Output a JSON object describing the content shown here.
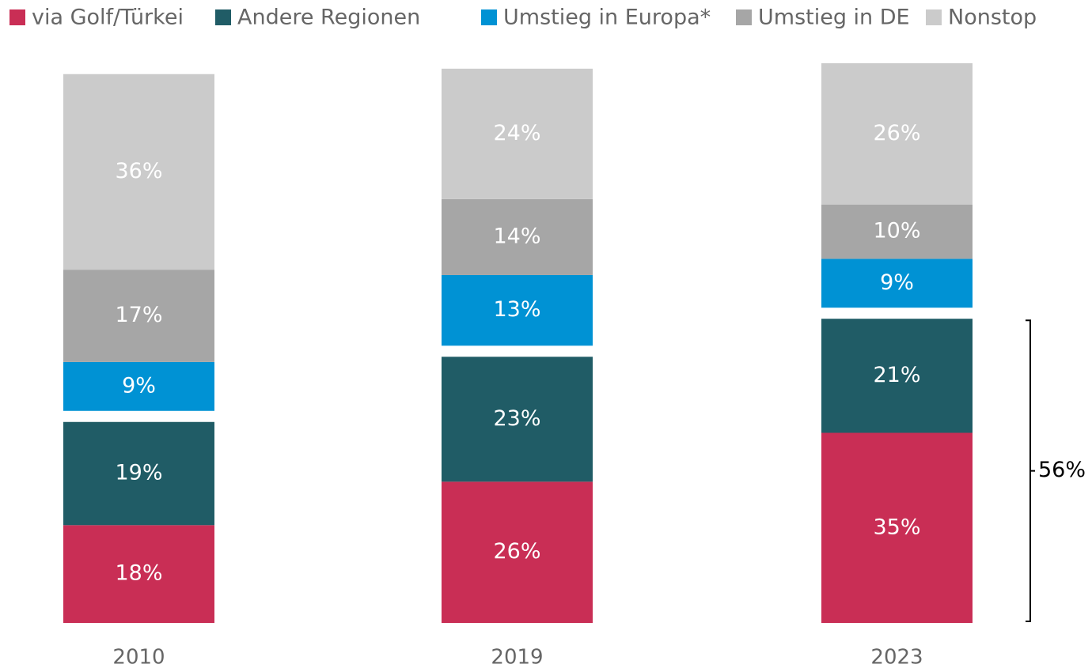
{
  "chart_data": {
    "type": "stacked_bar",
    "categories": [
      "2010",
      "2019",
      "2023"
    ],
    "series": [
      {
        "name": "via Golf/Türkei",
        "color": "#c92e55",
        "values": [
          18,
          26,
          35
        ],
        "value_labels": [
          "18%",
          "26%",
          "35%"
        ]
      },
      {
        "name": "Andere Regionen",
        "color": "#205c66",
        "values": [
          19,
          23,
          21
        ],
        "value_labels": [
          "19%",
          "23%",
          "21%"
        ]
      },
      {
        "name": "Umstieg in Europa*",
        "color": "#0092d4",
        "values": [
          9,
          13,
          9
        ],
        "value_labels": [
          "9%",
          "13%",
          "9%"
        ]
      },
      {
        "name": "Umstieg in DE",
        "color": "#a6a6a6",
        "values": [
          17,
          14,
          10
        ],
        "value_labels": [
          "17%",
          "14%",
          "10%"
        ]
      },
      {
        "name": "Nonstop",
        "color": "#cbcbcb",
        "values": [
          36,
          24,
          26
        ],
        "value_labels": [
          "36%",
          "24%",
          "26%"
        ]
      }
    ],
    "annotations": [
      {
        "text": "56%"
      }
    ]
  }
}
